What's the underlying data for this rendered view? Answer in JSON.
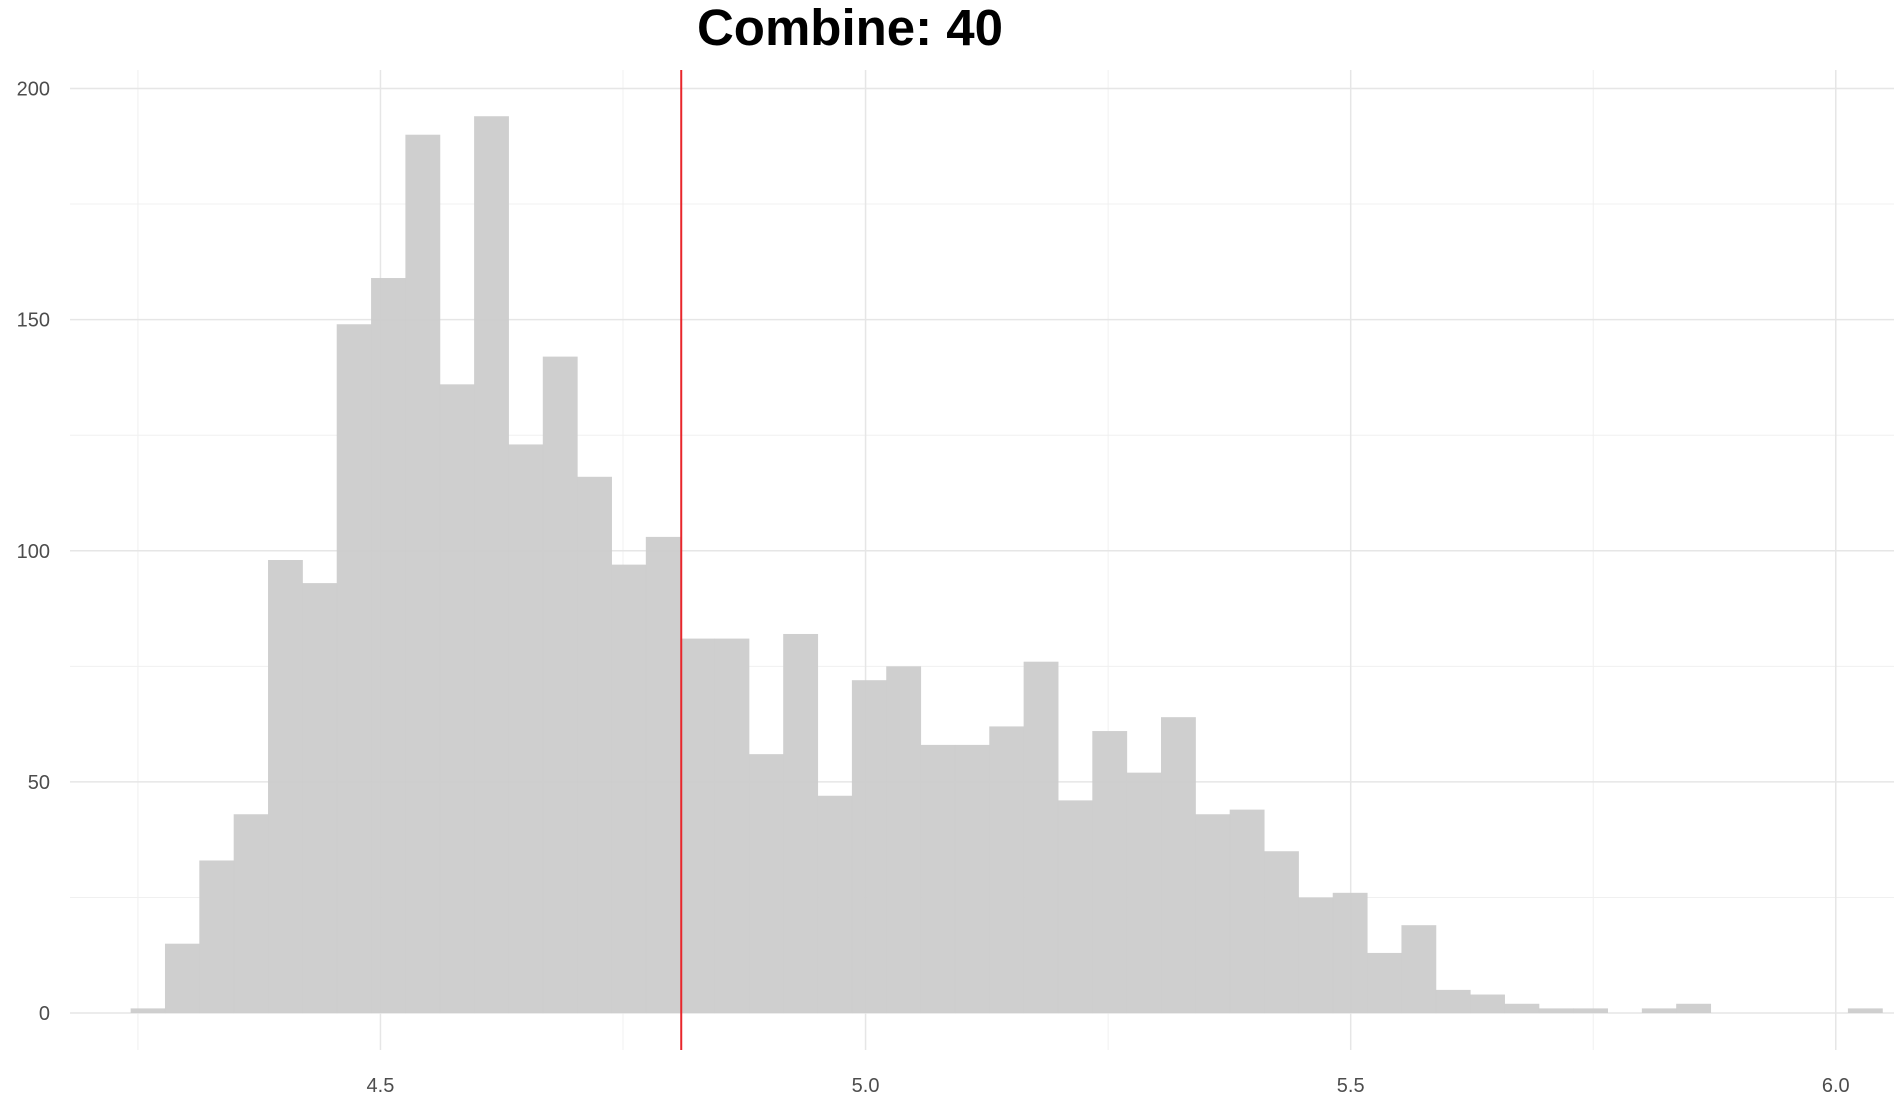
{
  "chart_data": {
    "type": "bar",
    "title": "Combine: 40",
    "xlabel": "",
    "ylabel": "",
    "x_ticks": [
      "4.5",
      "5.0",
      "5.5",
      "6.0"
    ],
    "x_tick_values": [
      4.5,
      5.0,
      5.5,
      6.0
    ],
    "y_ticks": [
      "0",
      "50",
      "100",
      "150",
      "200"
    ],
    "y_tick_values": [
      0,
      50,
      100,
      150,
      200
    ],
    "xlim": [
      4.18,
      6.06
    ],
    "ylim": [
      -8,
      204
    ],
    "bin_width": 0.0354,
    "bins_start": 4.2425,
    "values": [
      1,
      15,
      33,
      43,
      98,
      93,
      149,
      159,
      190,
      136,
      194,
      123,
      142,
      116,
      97,
      103,
      81,
      81,
      56,
      82,
      47,
      72,
      75,
      58,
      58,
      62,
      76,
      46,
      61,
      52,
      64,
      43,
      44,
      35,
      25,
      26,
      13,
      19,
      5,
      4,
      2,
      1,
      1,
      0,
      1,
      2,
      0,
      0,
      0,
      0,
      1
    ],
    "reference_line": {
      "x": 4.81,
      "color": "#e8262b"
    },
    "bar_color": "#cccccc",
    "grid": true
  }
}
